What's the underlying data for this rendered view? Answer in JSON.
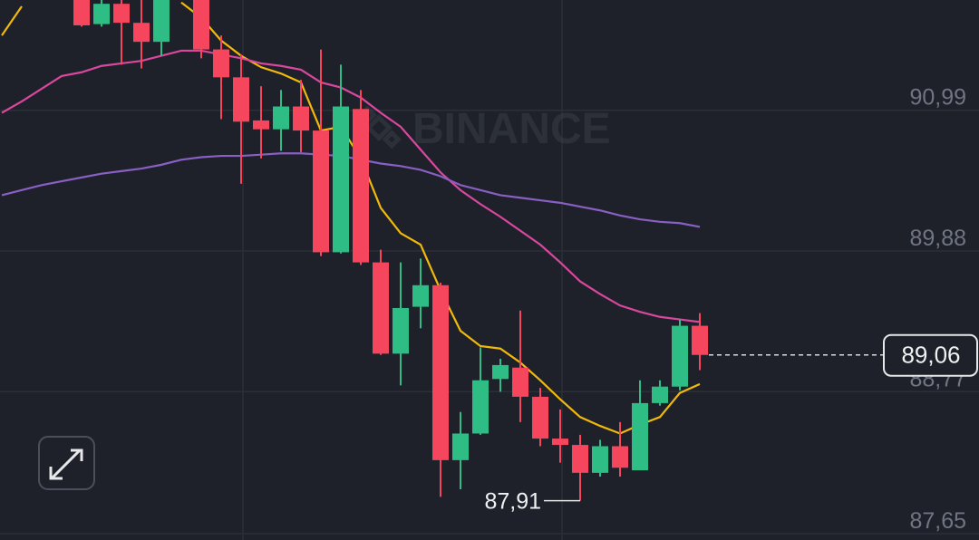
{
  "chart_data": {
    "type": "candlestick",
    "watermark": "BINANCE",
    "ylim": [
      87.6,
      91.86
    ],
    "yticks": [
      {
        "value": 90.99,
        "label": "90,99"
      },
      {
        "value": 89.88,
        "label": "89,88"
      },
      {
        "value": 88.77,
        "label": "88,77"
      },
      {
        "value": 87.65,
        "label": "87,65"
      }
    ],
    "grid": true,
    "up_color": "#2ebd85",
    "down_color": "#f6465d",
    "open": [
      null,
      null,
      null,
      null,
      91.86,
      91.67,
      91.83,
      91.68,
      91.53,
      null,
      91.86,
      91.47,
      91.25,
      90.91,
      90.84,
      91.02,
      90.83,
      89.87,
      91.0,
      89.79,
      89.07,
      89.44,
      89.61,
      88.23,
      88.44,
      88.87,
      88.96,
      88.73,
      88.4,
      88.35,
      88.13,
      88.34,
      88.15,
      88.68,
      88.81,
      89.29
    ],
    "high": [
      null,
      null,
      null,
      null,
      91.86,
      91.86,
      91.86,
      91.86,
      91.86,
      null,
      91.86,
      91.58,
      91.43,
      91.18,
      91.15,
      91.23,
      91.47,
      91.35,
      91.15,
      89.89,
      89.79,
      89.82,
      89.63,
      88.61,
      89.12,
      89.03,
      89.41,
      88.8,
      88.63,
      88.43,
      88.39,
      88.53,
      88.86,
      88.86,
      89.34,
      89.39
    ],
    "low": [
      null,
      null,
      null,
      null,
      91.65,
      91.65,
      91.35,
      91.32,
      91.42,
      null,
      91.4,
      90.92,
      90.41,
      90.61,
      90.67,
      90.66,
      89.84,
      89.86,
      89.77,
      89.06,
      88.82,
      89.27,
      87.94,
      88.0,
      88.43,
      88.77,
      88.53,
      88.34,
      88.21,
      87.91,
      88.1,
      88.1,
      88.15,
      88.66,
      88.78,
      88.94
    ],
    "close": [
      null,
      null,
      null,
      null,
      91.66,
      91.83,
      91.68,
      91.53,
      91.86,
      null,
      91.47,
      91.25,
      90.9,
      90.84,
      91.02,
      90.83,
      89.87,
      91.02,
      89.79,
      89.07,
      89.43,
      89.61,
      88.23,
      88.44,
      88.86,
      88.98,
      88.73,
      88.4,
      88.35,
      88.13,
      88.34,
      88.17,
      88.68,
      88.81,
      89.29,
      89.06
    ],
    "series": [
      {
        "color": "#f0b90b",
        "values": [
          91.58,
          91.81,
          null,
          null,
          null,
          null,
          null,
          null,
          null,
          91.84,
          91.72,
          91.54,
          91.42,
          91.33,
          91.28,
          91.21,
          90.83,
          90.86,
          90.61,
          90.22,
          90.02,
          89.93,
          89.57,
          89.25,
          89.13,
          89.11,
          89.0,
          88.86,
          88.71,
          88.57,
          88.5,
          88.44,
          88.51,
          88.57,
          88.76,
          88.83
        ]
      },
      {
        "color": "#d9479f",
        "values": [
          90.97,
          91.06,
          91.16,
          91.26,
          91.29,
          91.34,
          91.36,
          91.38,
          91.42,
          91.46,
          91.46,
          91.43,
          91.4,
          91.36,
          91.34,
          91.31,
          91.21,
          91.17,
          91.09,
          90.97,
          90.86,
          90.68,
          90.5,
          90.36,
          90.25,
          90.15,
          90.04,
          89.93,
          89.79,
          89.64,
          89.54,
          89.45,
          89.4,
          89.36,
          89.34,
          89.32
        ]
      },
      {
        "color": "#8a5fc4",
        "values": [
          90.32,
          90.36,
          90.4,
          90.43,
          90.46,
          90.49,
          90.51,
          90.53,
          90.56,
          90.6,
          90.62,
          90.63,
          90.63,
          90.64,
          90.65,
          90.65,
          90.64,
          90.63,
          90.6,
          90.57,
          90.55,
          90.52,
          90.47,
          90.4,
          90.36,
          90.32,
          90.3,
          90.28,
          90.26,
          90.23,
          90.2,
          90.16,
          90.13,
          90.11,
          90.1,
          90.07
        ]
      }
    ],
    "last_price": {
      "value": 89.06,
      "label": "89,06"
    },
    "low_marker": {
      "value": 87.91,
      "label": "87,91"
    }
  }
}
